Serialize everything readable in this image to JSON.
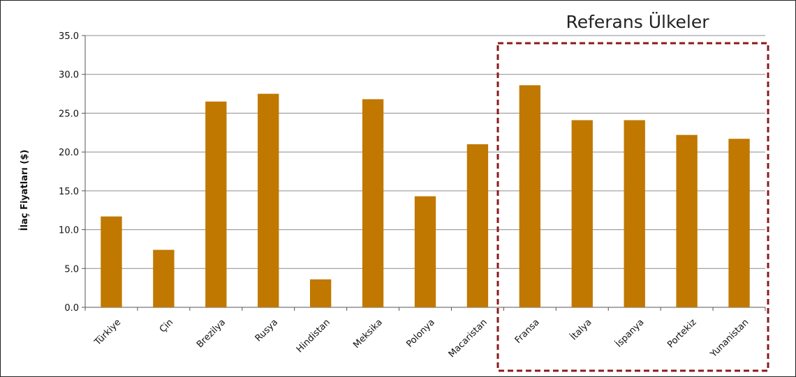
{
  "chart_data": {
    "type": "bar",
    "title": "",
    "xlabel": "",
    "ylabel": "İlaç Fiyatları ($)",
    "ylim": [
      0,
      35
    ],
    "ytick_step": 5,
    "ytick_labels": [
      "0.0",
      "5.0",
      "10.0",
      "15.0",
      "20.0",
      "25.0",
      "30.0",
      "35.0"
    ],
    "grid": true,
    "categories": [
      "Türkiye",
      "Çin",
      "Brezilya",
      "Rusya",
      "Hindistan",
      "Meksika",
      "Polonya",
      "Macaristan",
      "Fransa",
      "İtalya",
      "İspanya",
      "Portekiz",
      "Yunanistan"
    ],
    "values": [
      11.7,
      7.4,
      26.5,
      27.5,
      3.6,
      26.8,
      14.3,
      21.0,
      28.6,
      24.1,
      24.1,
      22.2,
      21.7
    ],
    "bar_color": "#C07800",
    "annotations": [
      {
        "text": "Referans Ülkeler",
        "highlight_categories": [
          "Fransa",
          "İtalya",
          "İspanya",
          "Portekiz",
          "Yunanistan"
        ],
        "box_color": "#8B1A1A",
        "box_style": "dashed"
      }
    ]
  }
}
